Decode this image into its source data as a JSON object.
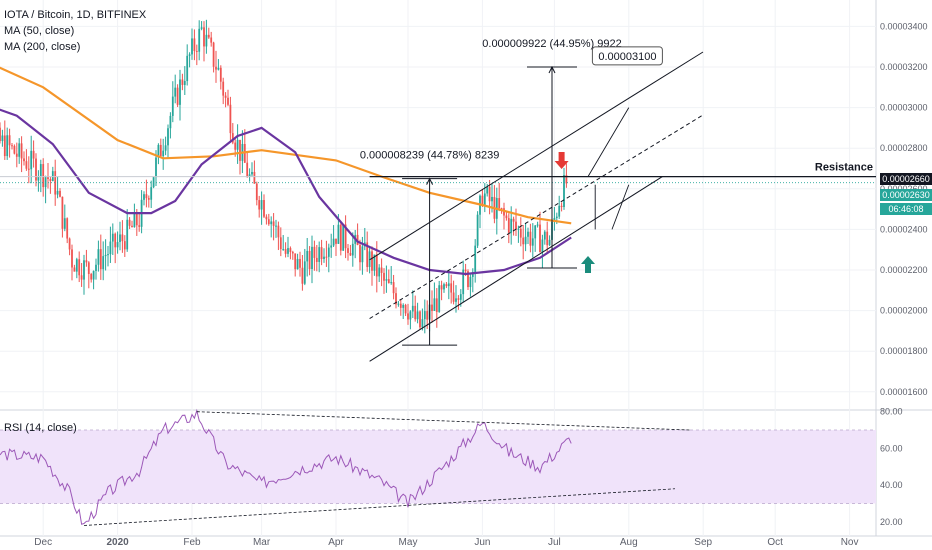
{
  "header": {
    "symbol_line": "IOTA / Bitcoin, 1D, BITFINEX",
    "ma50_label": "MA (50, close)",
    "ma200_label": "MA (200, close)",
    "rsi_label": "RSI (14, close)"
  },
  "price_tags": {
    "resistance": "0.00002660",
    "last": "0.00002630",
    "countdown": "06:46:08"
  },
  "annotations": {
    "resistance_label": "Resistance",
    "range1": "0.000008239 (44.78%) 8239",
    "range2": "0.000009922 (44.95%) 9922",
    "target_callout": "0.00003100"
  },
  "colors": {
    "up": "#26a69a",
    "down": "#ef5350",
    "ma50": "#6a35a0",
    "ma200": "#f5962a",
    "rsi_line": "#9c58b8",
    "rsi_band": "#f0e3fa",
    "teal_arrow": "#1a8c7c",
    "red_arrow": "#e53935"
  },
  "chart_data": [
    {
      "type": "candlestick",
      "title": "IOTA / Bitcoin, 1D, BITFINEX",
      "y_unit": "BTC",
      "ylim": [
        1.53e-05,
        3.53e-05
      ],
      "y_ticks": [
        "0.00001600",
        "0.00001800",
        "0.00002000",
        "0.00002200",
        "0.00002400",
        "0.00002600",
        "0.00002800",
        "0.00003000",
        "0.00003200",
        "0.00003400"
      ],
      "x_ticks": [
        "Dec",
        "2020",
        "Feb",
        "Mar",
        "Apr",
        "May",
        "Jun",
        "Jul",
        "Aug",
        "Sep",
        "Oct",
        "Nov"
      ],
      "close_path": [
        [
          "2019-11-01",
          2.9e-05
        ],
        [
          "2019-11-08",
          2.85e-05
        ],
        [
          "2019-11-15",
          2.82e-05
        ],
        [
          "2019-11-22",
          2.75e-05
        ],
        [
          "2019-11-29",
          2.7e-05
        ],
        [
          "2019-12-06",
          2.62e-05
        ],
        [
          "2019-12-13",
          2.25e-05
        ],
        [
          "2019-12-20",
          2.2e-05
        ],
        [
          "2019-12-27",
          2.28e-05
        ],
        [
          "2020-01-03",
          2.35e-05
        ],
        [
          "2020-01-10",
          2.45e-05
        ],
        [
          "2020-01-17",
          2.72e-05
        ],
        [
          "2020-01-24",
          3e-05
        ],
        [
          "2020-01-31",
          3.25e-05
        ],
        [
          "2020-02-05",
          3.38e-05
        ],
        [
          "2020-02-12",
          3.18e-05
        ],
        [
          "2020-02-19",
          2.85e-05
        ],
        [
          "2020-02-26",
          2.62e-05
        ],
        [
          "2020-03-04",
          2.48e-05
        ],
        [
          "2020-03-11",
          2.28e-05
        ],
        [
          "2020-03-18",
          2.2e-05
        ],
        [
          "2020-03-25",
          2.3e-05
        ],
        [
          "2020-04-01",
          2.38e-05
        ],
        [
          "2020-04-08",
          2.32e-05
        ],
        [
          "2020-04-15",
          2.25e-05
        ],
        [
          "2020-04-22",
          2.12e-05
        ],
        [
          "2020-04-29",
          2.05e-05
        ],
        [
          "2020-05-06",
          1.92e-05
        ],
        [
          "2020-05-13",
          2.05e-05
        ],
        [
          "2020-05-20",
          2.1e-05
        ],
        [
          "2020-05-27",
          2.18e-05
        ],
        [
          "2020-06-01",
          2.58e-05
        ],
        [
          "2020-06-08",
          2.48e-05
        ],
        [
          "2020-06-15",
          2.4e-05
        ],
        [
          "2020-06-22",
          2.36e-05
        ],
        [
          "2020-06-29",
          2.35e-05
        ],
        [
          "2020-07-03",
          2.55e-05
        ],
        [
          "2020-07-06",
          2.63e-05
        ]
      ],
      "ma50_path": [
        [
          "2019-11-01",
          3.04e-05
        ],
        [
          "2019-11-20",
          2.96e-05
        ],
        [
          "2019-12-05",
          2.82e-05
        ],
        [
          "2019-12-20",
          2.58e-05
        ],
        [
          "2020-01-05",
          2.48e-05
        ],
        [
          "2020-01-15",
          2.48e-05
        ],
        [
          "2020-01-25",
          2.54e-05
        ],
        [
          "2020-02-05",
          2.72e-05
        ],
        [
          "2020-02-20",
          2.86e-05
        ],
        [
          "2020-03-01",
          2.9e-05
        ],
        [
          "2020-03-15",
          2.78e-05
        ],
        [
          "2020-03-25",
          2.56e-05
        ],
        [
          "2020-04-10",
          2.34e-05
        ],
        [
          "2020-04-25",
          2.26e-05
        ],
        [
          "2020-05-10",
          2.2e-05
        ],
        [
          "2020-05-25",
          2.18e-05
        ],
        [
          "2020-06-10",
          2.2e-05
        ],
        [
          "2020-06-25",
          2.26e-05
        ],
        [
          "2020-07-08",
          2.36e-05
        ]
      ],
      "ma200_path": [
        [
          "2019-11-01",
          3.26e-05
        ],
        [
          "2019-12-01",
          3.1e-05
        ],
        [
          "2020-01-01",
          2.84e-05
        ],
        [
          "2020-01-20",
          2.75e-05
        ],
        [
          "2020-02-10",
          2.76e-05
        ],
        [
          "2020-03-01",
          2.79e-05
        ],
        [
          "2020-04-01",
          2.74e-05
        ],
        [
          "2020-04-20",
          2.66e-05
        ],
        [
          "2020-05-10",
          2.58e-05
        ],
        [
          "2020-06-01",
          2.52e-05
        ],
        [
          "2020-06-20",
          2.46e-05
        ],
        [
          "2020-07-08",
          2.43e-05
        ]
      ],
      "last_price": 2.63e-05,
      "resistance": 2.66e-05
    },
    {
      "type": "line",
      "title": "RSI (14, close)",
      "ylim": [
        15,
        85
      ],
      "y_ticks": [
        "20.00",
        "40.00",
        "60.00",
        "80.00"
      ],
      "band": [
        30,
        70
      ],
      "series": [
        [
          "2019-11-01",
          60
        ],
        [
          "2019-11-15",
          57
        ],
        [
          "2019-12-01",
          55
        ],
        [
          "2019-12-12",
          36
        ],
        [
          "2019-12-18",
          18
        ],
        [
          "2019-12-28",
          36
        ],
        [
          "2020-01-10",
          48
        ],
        [
          "2020-01-20",
          70
        ],
        [
          "2020-02-03",
          79
        ],
        [
          "2020-02-15",
          52
        ],
        [
          "2020-03-01",
          41
        ],
        [
          "2020-03-15",
          48
        ],
        [
          "2020-04-01",
          55
        ],
        [
          "2020-04-20",
          42
        ],
        [
          "2020-05-01",
          30
        ],
        [
          "2020-05-20",
          56
        ],
        [
          "2020-06-01",
          74
        ],
        [
          "2020-06-12",
          58
        ],
        [
          "2020-06-25",
          50
        ],
        [
          "2020-07-01",
          57
        ],
        [
          "2020-07-08",
          66
        ]
      ]
    }
  ]
}
